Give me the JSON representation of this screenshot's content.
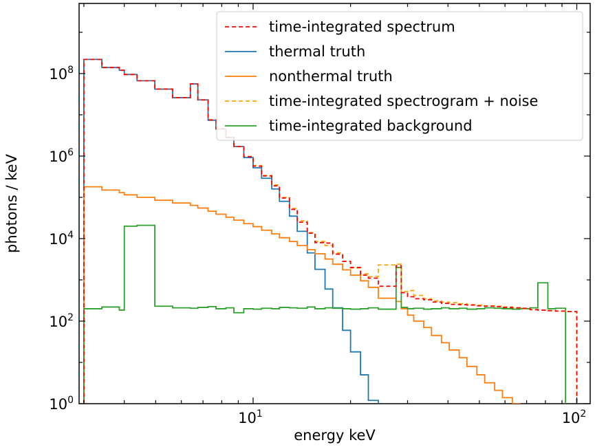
{
  "chart_data": {
    "type": "line",
    "title": "",
    "xlabel": "energy keV",
    "ylabel": "photons / keV",
    "xscale": "log",
    "yscale": "log",
    "xlim": [
      2.9,
      110
    ],
    "ylim": [
      1,
      5000000000.0
    ],
    "x_ticks": [
      {
        "value": 10,
        "base": "10",
        "exp": "1"
      },
      {
        "value": 100,
        "base": "10",
        "exp": "2"
      }
    ],
    "y_ticks": [
      {
        "value": 1,
        "base": "10",
        "exp": "0"
      },
      {
        "value": 100,
        "base": "10",
        "exp": "2"
      },
      {
        "value": 10000,
        "base": "10",
        "exp": "4"
      },
      {
        "value": 1000000,
        "base": "10",
        "exp": "6"
      },
      {
        "value": 100000000,
        "base": "10",
        "exp": "8"
      }
    ],
    "legend_position": "top-right",
    "bin_edges": [
      3.0,
      3.41,
      3.86,
      4.0,
      4.38,
      4.97,
      5.64,
      6.4,
      6.75,
      7.26,
      7.68,
      8.24,
      8.72,
      9.36,
      10.0,
      10.62,
      11.42,
      12.06,
      12.95,
      13.69,
      14.7,
      15.53,
      16.68,
      17.62,
      18.9,
      20.0,
      21.47,
      22.7,
      24.37,
      27.65,
      28.69,
      30.0,
      31.35,
      33.65,
      35.58,
      38.19,
      40.36,
      43.32,
      45.78,
      49.14,
      51.93,
      55.74,
      58.91,
      63.23,
      66.8,
      71.7,
      75.8,
      81.4,
      86.0,
      92.3,
      100.0
    ],
    "series": [
      {
        "name": "time-integrated spectrum",
        "color": "#ff0000",
        "dash": "6,4",
        "width": 1.8,
        "values": [
          220000000.0,
          140000000.0,
          120000000.0,
          95000000.0,
          67000000.0,
          42000000.0,
          26000000.0,
          56000000.0,
          23000000.0,
          7500000.0,
          4600000.0,
          2800000.0,
          1700000.0,
          970000.0,
          570000.0,
          330000.0,
          190000.0,
          96000.0,
          51000.0,
          25000.0,
          13500.0,
          8000,
          7800,
          4200,
          2800,
          2000,
          1300,
          1100,
          700,
          2200,
          490,
          390,
          350,
          330,
          290,
          270,
          255,
          250,
          245,
          235,
          230,
          225,
          215,
          210,
          205,
          190,
          185,
          180,
          175,
          170
        ]
      },
      {
        "name": "thermal truth",
        "color": "#1f77b4",
        "dash": "",
        "width": 1.8,
        "values": [
          220000000.0,
          140000000.0,
          120000000.0,
          95000000.0,
          67000000.0,
          42000000.0,
          26000000.0,
          56000000.0,
          23000000.0,
          7400000.0,
          4500000.0,
          2800000.0,
          1700000.0,
          920000.0,
          520000.0,
          290000.0,
          160000.0,
          80000.0,
          35000.0,
          15000.0,
          4500,
          1800,
          600,
          210,
          60,
          18,
          5,
          1.2,
          0.1
        ]
      },
      {
        "name": "nonthermal truth",
        "color": "#ff7f0e",
        "dash": "",
        "width": 1.8,
        "values": [
          180000.0,
          150000.0,
          130000.0,
          115000.0,
          100000.0,
          85000.0,
          73000.0,
          64000.0,
          55000.0,
          46000.0,
          39000.0,
          33000.0,
          28000.0,
          23000.0,
          19500.0,
          16000.0,
          13000.0,
          10500.0,
          8500,
          6800,
          5400,
          4300,
          3200,
          2400,
          1750,
          1300,
          950,
          660,
          360,
          300,
          200,
          140,
          100,
          70,
          45,
          30,
          20,
          13,
          8,
          5,
          3.2,
          2.1,
          1.4,
          1.0,
          0.62
        ]
      },
      {
        "name": "time-integrated spectrogram + noise",
        "color": "#ffa500",
        "dash": "6,4",
        "width": 1.8,
        "values": [
          220000000.0,
          140000000.0,
          120000000.0,
          95000000.0,
          67000000.0,
          42000000.0,
          26000000.0,
          56000000.0,
          23000000.0,
          7600000.0,
          4700000.0,
          2900000.0,
          1700000.0,
          980000.0,
          590000.0,
          340000.0,
          200000.0,
          100000.0,
          54000.0,
          27000.0,
          14000.0,
          8500,
          6800,
          4500,
          2800,
          1950,
          1400,
          1200,
          2300,
          2400,
          520,
          550,
          420,
          350,
          310,
          290,
          280,
          265,
          250,
          245,
          235,
          230,
          220,
          210,
          200,
          190,
          185,
          180,
          175,
          170
        ]
      },
      {
        "name": "time-integrated background",
        "color": "#2ca02c",
        "dash": "",
        "width": 1.8,
        "values": [
          200,
          220,
          185,
          20000.0,
          21000.0,
          230,
          210,
          205,
          215,
          225,
          200,
          210,
          160,
          200,
          195,
          205,
          200,
          215,
          210,
          205,
          220,
          200,
          210,
          205,
          200,
          195,
          200,
          210,
          195,
          2000,
          215,
          200,
          205,
          195,
          200,
          210,
          200,
          205,
          195,
          200,
          210,
          205,
          200,
          195,
          200,
          210,
          850,
          200,
          205
        ]
      }
    ]
  }
}
